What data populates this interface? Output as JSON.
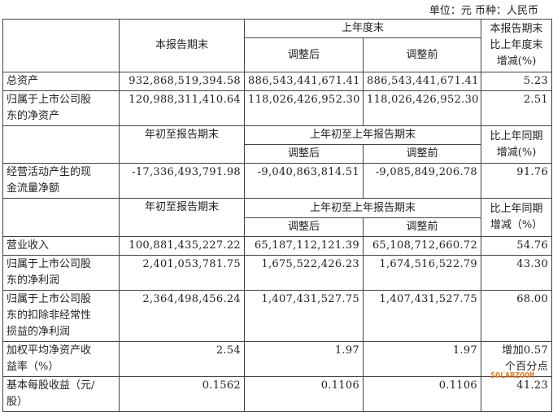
{
  "unit_line": "单位：元 币种：人民币",
  "header1": {
    "current": "本报告期末",
    "prev_year_end": "上年度末",
    "adjusted": "调整后",
    "before_adjust": "调整前",
    "change": "本报告期末\n比上年度末\n增减(%)"
  },
  "rows1": [
    {
      "label": "总资产",
      "current": "932,868,519,394.58",
      "adjusted": "886,543,441,671.41",
      "before": "886,543,441,671.41",
      "change": "5.23"
    },
    {
      "label": "归属于上市公司股\n东的净资产",
      "current": "120,988,311,410.64",
      "adjusted": "118,026,426,952.30",
      "before": "118,026,426,952.30",
      "change": "2.51"
    }
  ],
  "header2": {
    "current": "年初至报告期末",
    "prev": "上年初至上年报告期末",
    "adjusted": "调整后",
    "before_adjust": "调整前",
    "change": "比上年同期\n增减(%)"
  },
  "rows2": [
    {
      "label": "经营活动产生的现\n金流量净额",
      "current": "-17,336,493,791.98",
      "adjusted": "-9,040,863,814.51",
      "before": "-9,085,849,206.78",
      "change": "91.76"
    }
  ],
  "header3": {
    "current": "年初至报告期末",
    "prev": "上年初至上年报告期末",
    "adjusted": "调整后",
    "before_adjust": "调整前",
    "change": "比上年同期\n增减（%）"
  },
  "rows3": [
    {
      "label": "营业收入",
      "current": "100,881,435,227.22",
      "adjusted": "65,187,112,121.39",
      "before": "65,108,712,660.72",
      "change": "54.76"
    },
    {
      "label": "归属于上市公司股\n东的净利润",
      "current": "2,401,053,781.75",
      "adjusted": "1,675,522,426.23",
      "before": "1,674,516,522.79",
      "change": "43.30"
    },
    {
      "label": "归属于上市公司股\n东的扣除非经常性\n损益的净利润",
      "current": "2,364,498,456.24",
      "adjusted": "1,407,431,527.75",
      "before": "1,407,431,527.75",
      "change": "68.00"
    },
    {
      "label": "加权平均净资产收\n益率（%）",
      "current": "2.54",
      "adjusted": "1.97",
      "before": "1.97",
      "change": "增加0.57\n个百分点"
    },
    {
      "label": "基本每股收益（元/\n股）",
      "current": "0.1562",
      "adjusted": "0.1106",
      "before": "0.1106",
      "change": "41.23"
    }
  ],
  "watermark": "SOLARZOOM"
}
